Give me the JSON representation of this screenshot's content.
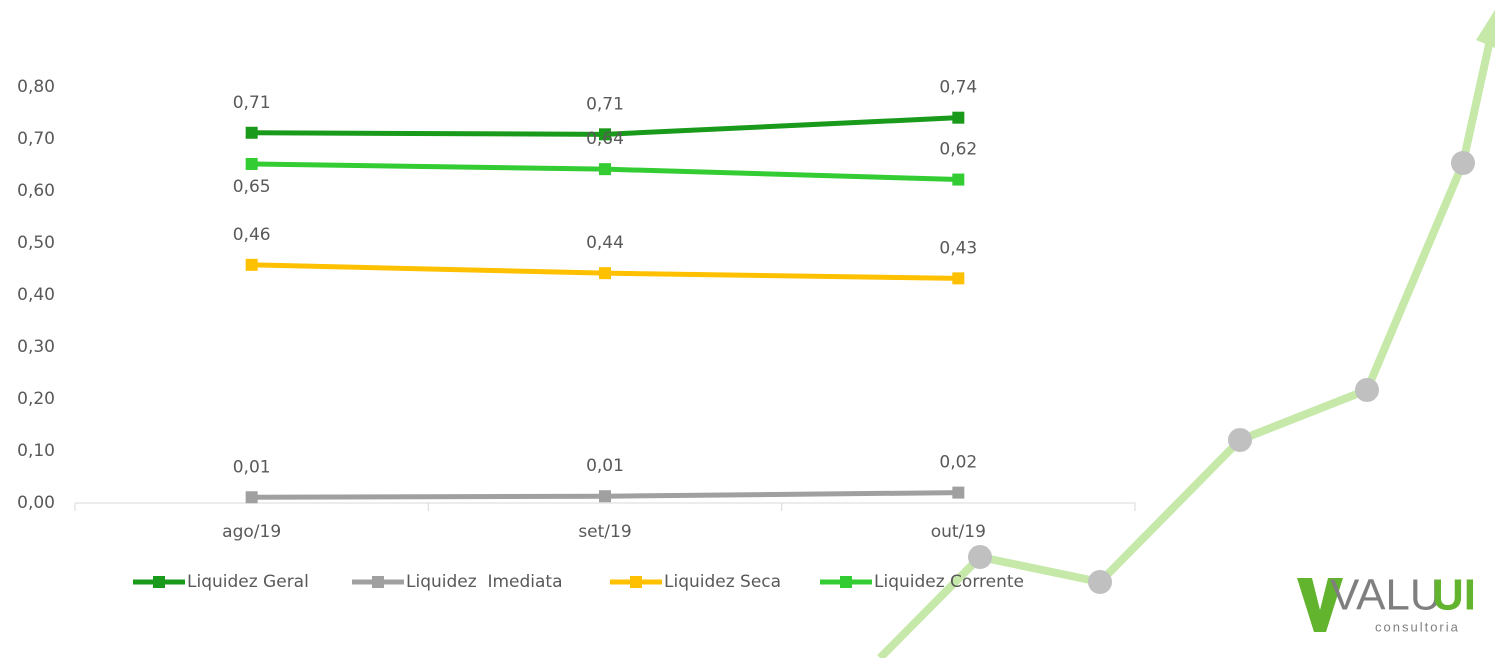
{
  "chart_data": {
    "type": "line",
    "categories": [
      "ago/19",
      "set/19",
      "out/19"
    ],
    "series": [
      {
        "name": "Liquidez Geral",
        "color": "#1a9a1a",
        "values": [
          0.712,
          0.709,
          0.741
        ],
        "value_labels": [
          "0,71",
          "0,71",
          "0,74"
        ]
      },
      {
        "name": "Liquidez  Imediata",
        "color": "#a0a0a0",
        "values": [
          0.011,
          0.013,
          0.02
        ],
        "value_labels": [
          "0,01",
          "0,01",
          "0,02"
        ]
      },
      {
        "name": "Liquidez Seca",
        "color": "#ffc000",
        "values": [
          0.458,
          0.442,
          0.432
        ],
        "value_labels": [
          "0,46",
          "0,44",
          "0,43"
        ]
      },
      {
        "name": "Liquidez Corrente",
        "color": "#33cc33",
        "values": [
          0.652,
          0.642,
          0.622
        ],
        "value_labels": [
          "0,65",
          "0,64",
          "0,62"
        ]
      }
    ],
    "ylim": [
      0,
      0.8
    ],
    "yticks": [
      {
        "value": 0,
        "label": "0,00"
      },
      {
        "value": 0.1,
        "label": "0,10"
      },
      {
        "value": 0.2,
        "label": "0,20"
      },
      {
        "value": 0.3,
        "label": "0,30"
      },
      {
        "value": 0.4,
        "label": "0,40"
      },
      {
        "value": 0.5,
        "label": "0,50"
      },
      {
        "value": 0.6,
        "label": "0,60"
      },
      {
        "value": 0.7,
        "label": "0,70"
      },
      {
        "value": 0.8,
        "label": "0,80"
      }
    ],
    "grid": false,
    "legend": "bottom"
  },
  "logo": {
    "name_a": "VALU",
    "name_b": "UI",
    "tagline": "consultoria"
  }
}
